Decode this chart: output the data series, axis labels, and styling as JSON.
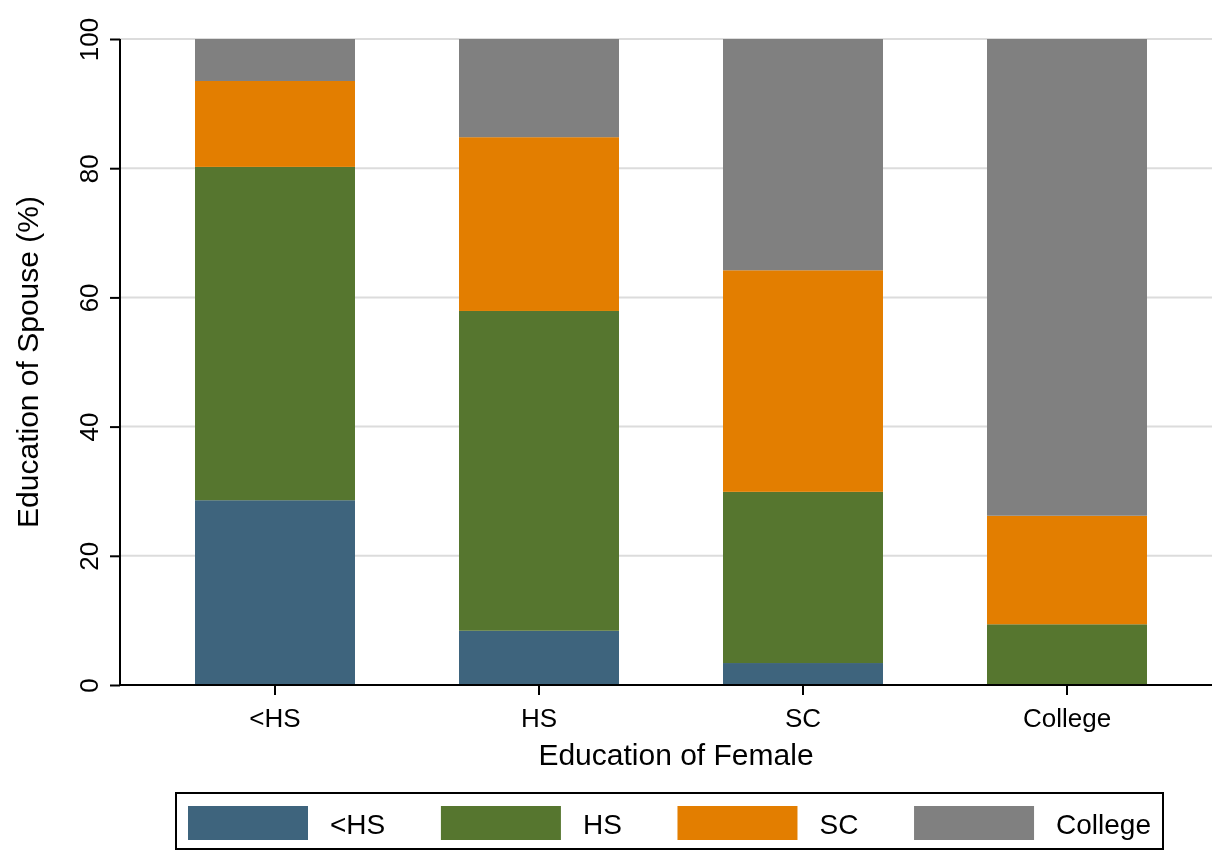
{
  "chart_data": {
    "type": "bar",
    "stacked": true,
    "xlabel": "Education of Female",
    "ylabel": "Education of Spouse (%)",
    "categories": [
      "<HS",
      "HS",
      "SC",
      "College"
    ],
    "series": [
      {
        "name": "<HS",
        "color": "#3e647d",
        "values": [
          28.6,
          8.4,
          3.4,
          0
        ]
      },
      {
        "name": "HS",
        "color": "#56762f",
        "values": [
          51.6,
          49.5,
          26.5,
          9.4
        ]
      },
      {
        "name": "SC",
        "color": "#e37e00",
        "values": [
          13.3,
          26.9,
          34.3,
          16.8
        ]
      },
      {
        "name": "College",
        "color": "#808080",
        "values": [
          6.5,
          15.2,
          35.8,
          73.8
        ]
      }
    ],
    "ylim": [
      0,
      100
    ],
    "yticks": [
      0,
      20,
      40,
      60,
      80,
      100
    ],
    "grid": "y",
    "legend": "bottom"
  }
}
